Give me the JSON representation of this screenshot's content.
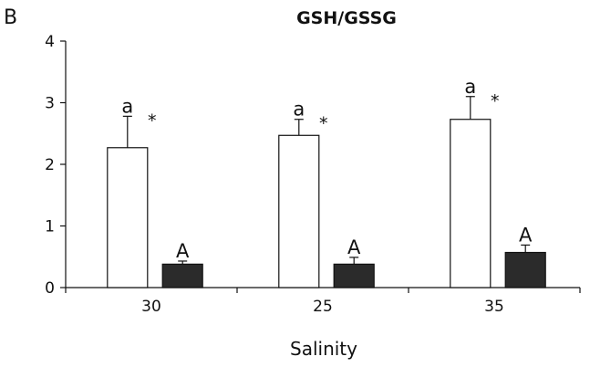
{
  "panel_label": "B",
  "chart_data": {
    "type": "bar",
    "title": "GSH/GSSG",
    "xlabel": "Salinity",
    "ylabel": "",
    "categories": [
      "30",
      "25",
      "35"
    ],
    "ylim": [
      0,
      4
    ],
    "yticks": [
      "0",
      "1",
      "2",
      "3",
      "4"
    ],
    "grid": false,
    "legend": "none",
    "series": [
      {
        "fill": "#ffffff",
        "values": [
          2.27,
          2.47,
          2.73
        ],
        "errors": [
          0.51,
          0.26,
          0.37
        ],
        "labels": [
          "a",
          "a",
          "a"
        ],
        "markers": [
          "*",
          "*",
          "*"
        ]
      },
      {
        "fill": "#2b2b2b",
        "values": [
          0.38,
          0.38,
          0.57
        ],
        "errors": [
          0.05,
          0.11,
          0.12
        ],
        "labels": [
          "A",
          "A",
          "A"
        ],
        "markers": [
          "",
          "",
          ""
        ]
      }
    ]
  }
}
